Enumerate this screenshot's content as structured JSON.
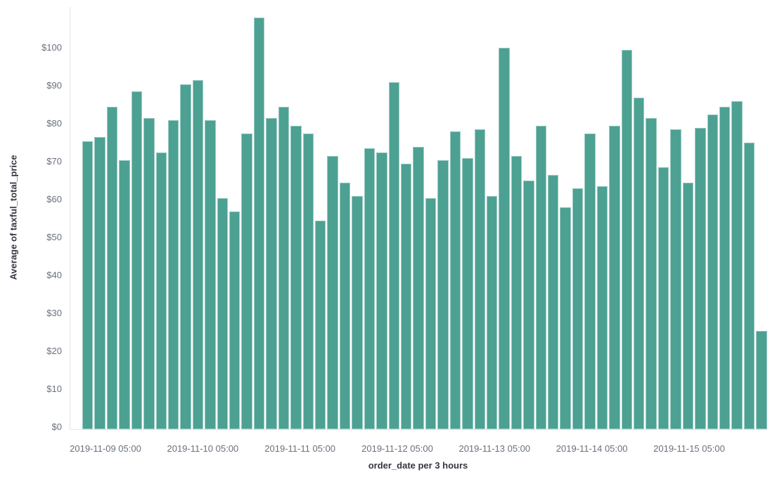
{
  "chart_data": {
    "type": "bar",
    "title": "",
    "xlabel": "order_date per 3 hours",
    "ylabel": "Average of taxful_total_price",
    "x_tick_labels": [
      "2019-11-09 05:00",
      "2019-11-10 05:00",
      "2019-11-11 05:00",
      "2019-11-12 05:00",
      "2019-11-13 05:00",
      "2019-11-14 05:00",
      "2019-11-15 05:00"
    ],
    "y_tick_labels": [
      "$0",
      "$10",
      "$20",
      "$30",
      "$40",
      "$50",
      "$60",
      "$70",
      "$80",
      "$90",
      "$100"
    ],
    "y_tick_step": 10,
    "ylim": [
      0,
      111.3
    ],
    "x_bucket_interval": "3 hours",
    "x_range": [
      "2019-11-09",
      "2019-11-16"
    ],
    "grid": false,
    "legend": "none",
    "bar_color": "#4CA192",
    "bar_border_color": "rgba(255,255,255,0.45)",
    "axis_line_color": "#e0e3e8",
    "tick_label_color": "#69707D",
    "axis_title_color": "#343741",
    "background_color": "#ffffff",
    "values": [
      76,
      77,
      85,
      71,
      89,
      82,
      73,
      81.5,
      91,
      92,
      81.5,
      61,
      57.5,
      78,
      108.5,
      82,
      85,
      80,
      78,
      55,
      72,
      65,
      61.5,
      74,
      73,
      91.5,
      70,
      74.5,
      61,
      71,
      78.5,
      71.5,
      79,
      61.5,
      100.5,
      72,
      65.5,
      80,
      67,
      58.5,
      63.5,
      78,
      64,
      80,
      100,
      87.5,
      82,
      69,
      79,
      65,
      79.5,
      83,
      85,
      86.5,
      75.5,
      26
    ]
  },
  "layout_hints": {
    "note": "values are average taxful_total_price in USD per 3-hour bucket"
  }
}
